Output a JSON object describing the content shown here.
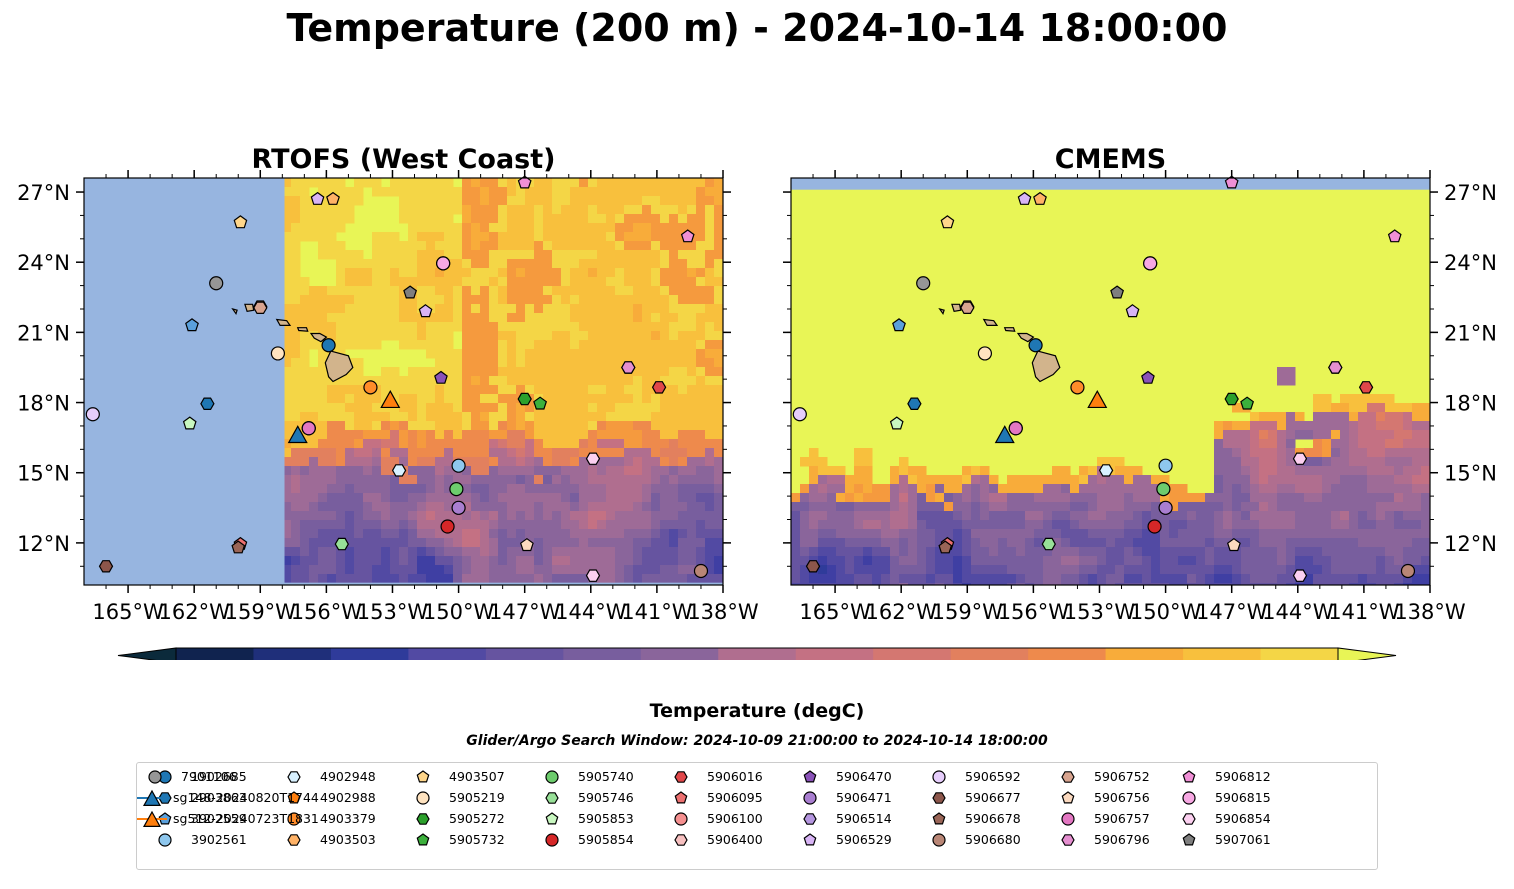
{
  "title": "Temperature (200 m) - 2024-10-14 18:00:00",
  "colors": {
    "land": "#d2b48c",
    "ocean_mask": "#97b5e0",
    "cmap": [
      "#0b2a3b",
      "#10234f",
      "#1f2f7a",
      "#2f3b9a",
      "#3f3fa3",
      "#524aa3",
      "#6654a0",
      "#785e9e",
      "#8a659b",
      "#9e6b97",
      "#b06e8f",
      "#c47183",
      "#d47771",
      "#e2805e",
      "#ee8a4c",
      "#f59a3e",
      "#f8ac3a",
      "#f8c03d",
      "#f4d646",
      "#e8f556"
    ]
  },
  "colorbar": {
    "label": "Temperature (degC)",
    "ticks": [
      "8",
      "9",
      "10",
      "11",
      "12",
      "13",
      "14",
      "15"
    ]
  },
  "search_window": "Glider/Argo Search Window: 2024-10-09 21:00:00 to 2024-10-14 18:00:00",
  "chart_data": [
    {
      "type": "heatmap",
      "title": "RTOFS (West Coast)",
      "x_ticks": [
        "165°W",
        "162°W",
        "159°W",
        "156°W",
        "153°W",
        "150°W",
        "147°W",
        "144°W",
        "141°W",
        "138°W"
      ],
      "y_ticks": [
        "27°N",
        "24°N",
        "21°N",
        "18°N",
        "15°N",
        "12°N"
      ],
      "xlim": [
        -167,
        -138
      ],
      "ylim": [
        10.2,
        27.6
      ],
      "value_range": [
        8,
        15.5
      ],
      "no_data_west_of_lon": -157.9,
      "no_data_south_of_lat": 10.3,
      "warm_band_min_lat": 16.5,
      "cold_band_max_lat": 15.5
    },
    {
      "type": "heatmap",
      "title": "CMEMS",
      "x_ticks": [
        "165°W",
        "162°W",
        "159°W",
        "156°W",
        "153°W",
        "150°W",
        "147°W",
        "144°W",
        "141°W",
        "138°W"
      ],
      "y_ticks": [
        "27°N",
        "24°N",
        "21°N",
        "18°N",
        "15°N",
        "12°N"
      ],
      "xlim": [
        -167,
        -138
      ],
      "ylim": [
        10.2,
        27.6
      ],
      "value_range": [
        8,
        15.5
      ],
      "no_data_north_of_lat": 27.1,
      "warm_band_min_lat": 16.5,
      "cold_band_max_lat": 14.0
    }
  ],
  "floats": [
    {
      "id": "1902685",
      "marker": "circle",
      "color": "#1f77b4",
      "lon": -155.9,
      "lat": 20.45
    },
    {
      "id": "2903863",
      "marker": "hexagon",
      "color": "#1f77b4",
      "lon": -166.0,
      "lat": 9.6
    },
    {
      "id": "3902559",
      "marker": "pentagon",
      "color": "#5aa0dc",
      "lon": -162.1,
      "lat": 21.3
    },
    {
      "id": "3902561",
      "marker": "circle",
      "color": "#8ec7ee",
      "lon": -150.0,
      "lat": 15.3
    },
    {
      "id": "4902948",
      "marker": "hexagon",
      "color": "#d8f1ff",
      "lon": -152.7,
      "lat": 15.1
    },
    {
      "id": "4902988",
      "marker": "pentagon",
      "color": "#ff7f0e",
      "lon": -150.2,
      "lat": 9.9
    },
    {
      "id": "4903379",
      "marker": "circle",
      "color": "#ff8c2a",
      "lon": -154.0,
      "lat": 18.65
    },
    {
      "id": "4903503",
      "marker": "hexagon",
      "color": "#ffb266",
      "lon": -159.0,
      "lat": 22.1
    },
    {
      "id": "4903507",
      "marker": "pentagon",
      "color": "#ffd68a",
      "lon": -159.9,
      "lat": 25.7
    },
    {
      "id": "5905219",
      "marker": "circle",
      "color": "#ffe3c0",
      "lon": -158.2,
      "lat": 20.1
    },
    {
      "id": "5905272",
      "marker": "hexagon",
      "color": "#2ca02c",
      "lon": -147.0,
      "lat": 18.15
    },
    {
      "id": "5905732",
      "marker": "pentagon",
      "color": "#3cb03c",
      "lon": -146.3,
      "lat": 17.95
    },
    {
      "id": "5905740",
      "marker": "circle",
      "color": "#6dcc6d",
      "lon": -150.1,
      "lat": 14.3
    },
    {
      "id": "5905746",
      "marker": "hexagon",
      "color": "#98e098",
      "lon": -155.3,
      "lat": 11.95
    },
    {
      "id": "5905853",
      "marker": "pentagon",
      "color": "#c8f7c0",
      "lon": -162.2,
      "lat": 17.1
    },
    {
      "id": "5905854",
      "marker": "circle",
      "color": "#d62728",
      "lon": -150.5,
      "lat": 12.7
    },
    {
      "id": "5906016",
      "marker": "hexagon",
      "color": "#e0474a",
      "lon": -140.9,
      "lat": 18.65
    },
    {
      "id": "5906095",
      "marker": "pentagon",
      "color": "#ec7070",
      "lon": -159.9,
      "lat": 11.95
    },
    {
      "id": "5906100",
      "marker": "circle",
      "color": "#f59090",
      "lon": -156.8,
      "lat": 16.9
    },
    {
      "id": "5906400",
      "marker": "hexagon",
      "color": "#f7c0c0",
      "lon": -142.3,
      "lat": 19.5
    },
    {
      "id": "5906470",
      "marker": "pentagon",
      "color": "#8a52b8",
      "lon": -150.8,
      "lat": 19.05
    },
    {
      "id": "5906471",
      "marker": "circle",
      "color": "#a97ed0",
      "lon": -150.0,
      "lat": 13.5
    },
    {
      "id": "5906514",
      "marker": "hexagon",
      "color": "#b596e0",
      "lon": -149.4,
      "lat": 9.3
    },
    {
      "id": "5906529",
      "marker": "pentagon",
      "color": "#d8b4f5",
      "lon": -151.5,
      "lat": 21.9
    },
    {
      "id": "5906592",
      "marker": "circle",
      "color": "#e6cdfb",
      "lon": -166.6,
      "lat": 17.5
    },
    {
      "id": "5906677",
      "marker": "hexagon",
      "color": "#8c564b",
      "lon": -166.0,
      "lat": 11.0
    },
    {
      "id": "5906678",
      "marker": "pentagon",
      "color": "#9a6557",
      "lon": -160.0,
      "lat": 11.8
    },
    {
      "id": "5906680",
      "marker": "circle",
      "color": "#b98676",
      "lon": -139.0,
      "lat": 10.8
    },
    {
      "id": "5906752",
      "marker": "hexagon",
      "color": "#d8a48f",
      "lon": -159.0,
      "lat": 22.05
    },
    {
      "id": "5906756",
      "marker": "pentagon",
      "color": "#fbd9bf",
      "lon": -146.9,
      "lat": 11.9
    },
    {
      "id": "5906757",
      "marker": "circle",
      "color": "#e377c2",
      "lon": -156.8,
      "lat": 16.9
    },
    {
      "id": "5906796",
      "marker": "hexagon",
      "color": "#e58fd0",
      "lon": -141.5,
      "lat": 9.6
    },
    {
      "id": "5906812",
      "marker": "pentagon",
      "color": "#f08fd6",
      "lon": -147.0,
      "lat": 27.4
    },
    {
      "id": "5906815",
      "marker": "circle",
      "color": "#f7a8e3",
      "lon": -150.7,
      "lat": 23.95
    },
    {
      "id": "5906854",
      "marker": "hexagon",
      "color": "#fcd0f0",
      "lon": -143.9,
      "lat": 10.6
    },
    {
      "id": "5907061",
      "marker": "pentagon",
      "color": "#7f7f7f",
      "lon": -152.2,
      "lat": 22.7
    },
    {
      "id": "7901106",
      "marker": "circle",
      "color": "#969696",
      "lon": -161.0,
      "lat": 23.1
    },
    {
      "id": "sg148-20240820T1744",
      "marker": "triangle",
      "color": "#1f77b4",
      "lon": -157.3,
      "lat": 16.6
    },
    {
      "id": "sg512-20240723T1831",
      "marker": "triangle",
      "color": "#ff7f0e",
      "lon": -153.1,
      "lat": 18.1
    }
  ],
  "extra_map_markers": [
    {
      "marker": "pentagon",
      "color": "#d8b4f5",
      "lon": -156.4,
      "lat": 26.7
    },
    {
      "marker": "pentagon",
      "color": "#ffb266",
      "lon": -155.7,
      "lat": 26.7
    },
    {
      "marker": "pentagon",
      "color": "#f08fd6",
      "lon": -139.6,
      "lat": 25.1
    },
    {
      "marker": "hexagon",
      "color": "#1f77b4",
      "lon": -161.4,
      "lat": 17.95
    },
    {
      "marker": "circle",
      "color": "#f7a8e3",
      "lon": -150.7,
      "lat": 23.95
    },
    {
      "marker": "hexagon",
      "color": "#fcd0f0",
      "lon": -143.9,
      "lat": 15.6
    },
    {
      "marker": "hexagon",
      "color": "#e58fd0",
      "lon": -142.3,
      "lat": 19.5
    }
  ]
}
